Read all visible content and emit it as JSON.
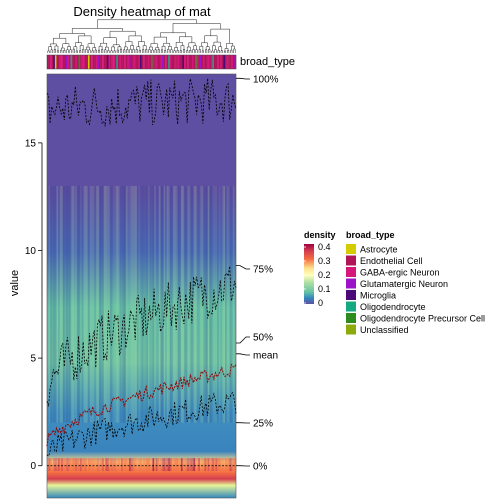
{
  "chart_data": {
    "type": "heatmap",
    "title": "Density heatmap of mat",
    "ylabel": "value",
    "xlabel": "",
    "ylim": [
      -1.5,
      18.2
    ],
    "y_ticks": [
      0,
      5,
      10,
      15
    ],
    "y_tick_labels": [
      "0",
      "5",
      "10",
      "15"
    ],
    "grid": false,
    "n_columns": 120,
    "column_annotation": {
      "name": "broad_type",
      "pattern": [
        2,
        2,
        3,
        2,
        5,
        1,
        2,
        2,
        3,
        3,
        2,
        2,
        4,
        3,
        2,
        6,
        2,
        2,
        3,
        2,
        7,
        2,
        3,
        3,
        2,
        2,
        1,
        2,
        3,
        2,
        2,
        3,
        4,
        2,
        2,
        3,
        2,
        2,
        5,
        3,
        2,
        3,
        3,
        2,
        6,
        2,
        3,
        2,
        2,
        3,
        2,
        3,
        4,
        2,
        2,
        3,
        2,
        2,
        3,
        5,
        2,
        3,
        2,
        2,
        3,
        2,
        7,
        3,
        2,
        3,
        2,
        2,
        3,
        4,
        2,
        3,
        2,
        6,
        3,
        2,
        2,
        3,
        2,
        3,
        2,
        2,
        5,
        3,
        2,
        3,
        2,
        2,
        3,
        2,
        7,
        3,
        2,
        4,
        2,
        3,
        2,
        2,
        3,
        2,
        3,
        6,
        2,
        2,
        3,
        2,
        3,
        2,
        5,
        2,
        3,
        2,
        2,
        3,
        2,
        4
      ]
    },
    "quantile_labels": [
      "100%",
      "75%",
      "50%",
      "mean",
      "25%",
      "0%"
    ],
    "quantile_values": [
      18,
      9.3,
      5.7,
      5.2,
      2.0,
      0
    ],
    "series": [
      {
        "name": "mean",
        "values_start": 1.0,
        "values_end": 4.5
      },
      {
        "name": "25%",
        "values_start": 0.4,
        "values_end": 3.0
      },
      {
        "name": "75%",
        "values_start": 3.5,
        "values_end": 8.5
      },
      {
        "name": "100%",
        "values_start": 16.5,
        "values_end": 17.0
      }
    ],
    "density_legend": {
      "title": "density",
      "ticks": [
        "0.4",
        "0.3",
        "0.2",
        "0.1",
        "0"
      ],
      "colors": [
        "#9e0142",
        "#d53e4f",
        "#f46d43",
        "#fdae61",
        "#fee08b",
        "#ffffbf",
        "#e6f598",
        "#abdda4",
        "#66c2a5",
        "#3288bd",
        "#5e4fa2"
      ]
    },
    "type_legend": {
      "title": "broad_type",
      "entries": [
        {
          "label": "Astrocyte",
          "color": "#d4cc00"
        },
        {
          "label": "Endothelial Cell",
          "color": "#b0155a"
        },
        {
          "label": "GABA-ergic Neuron",
          "color": "#d6177a"
        },
        {
          "label": "Glutamatergic Neuron",
          "color": "#9b14c8"
        },
        {
          "label": "Microglia",
          "color": "#4b0a78"
        },
        {
          "label": "Oligodendrocyte",
          "color": "#15a882"
        },
        {
          "label": "Oligodendrocyte Precursor Cell",
          "color": "#2e8b1e"
        },
        {
          "label": "Unclassified",
          "color": "#8cab0a"
        }
      ]
    }
  }
}
